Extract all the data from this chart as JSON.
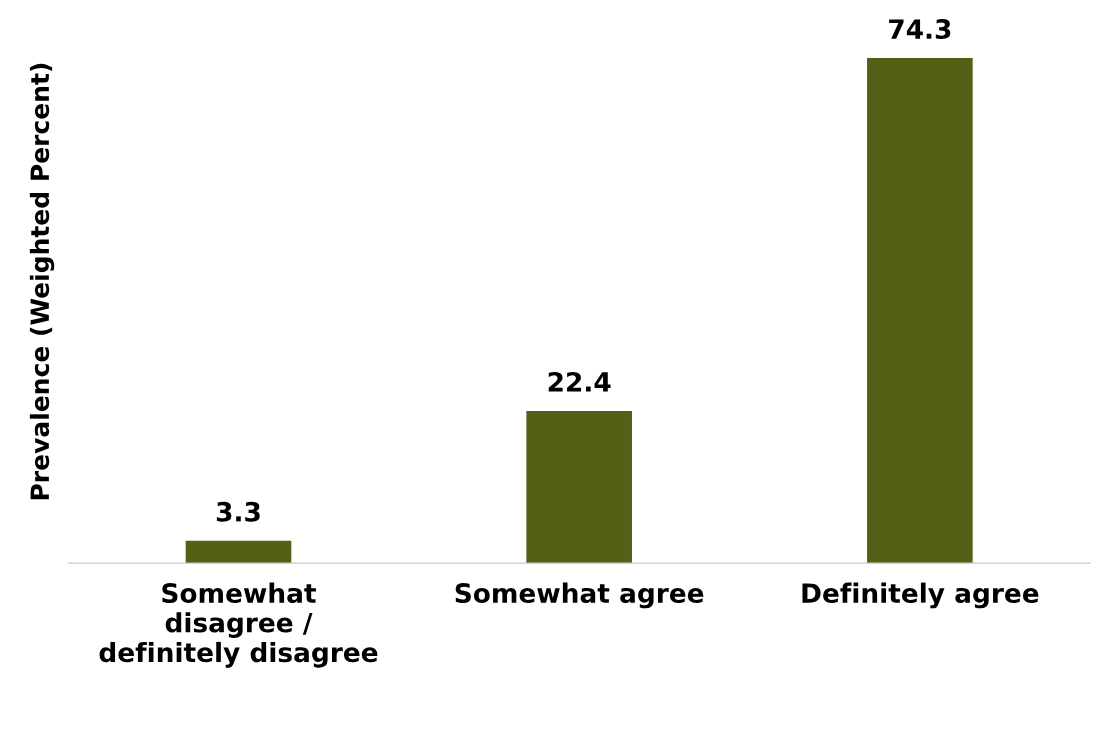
{
  "chart_data": {
    "type": "bar",
    "ylabel": "Prevalence (Weighted Percent)",
    "categories": [
      "Somewhat\ndisagree /\ndefinitely disagree",
      "Somewhat agree",
      "Definitely agree"
    ],
    "values": [
      3.3,
      22.4,
      74.3
    ],
    "color": "#536016",
    "data_labels": true,
    "grid": false,
    "legend": false
  }
}
